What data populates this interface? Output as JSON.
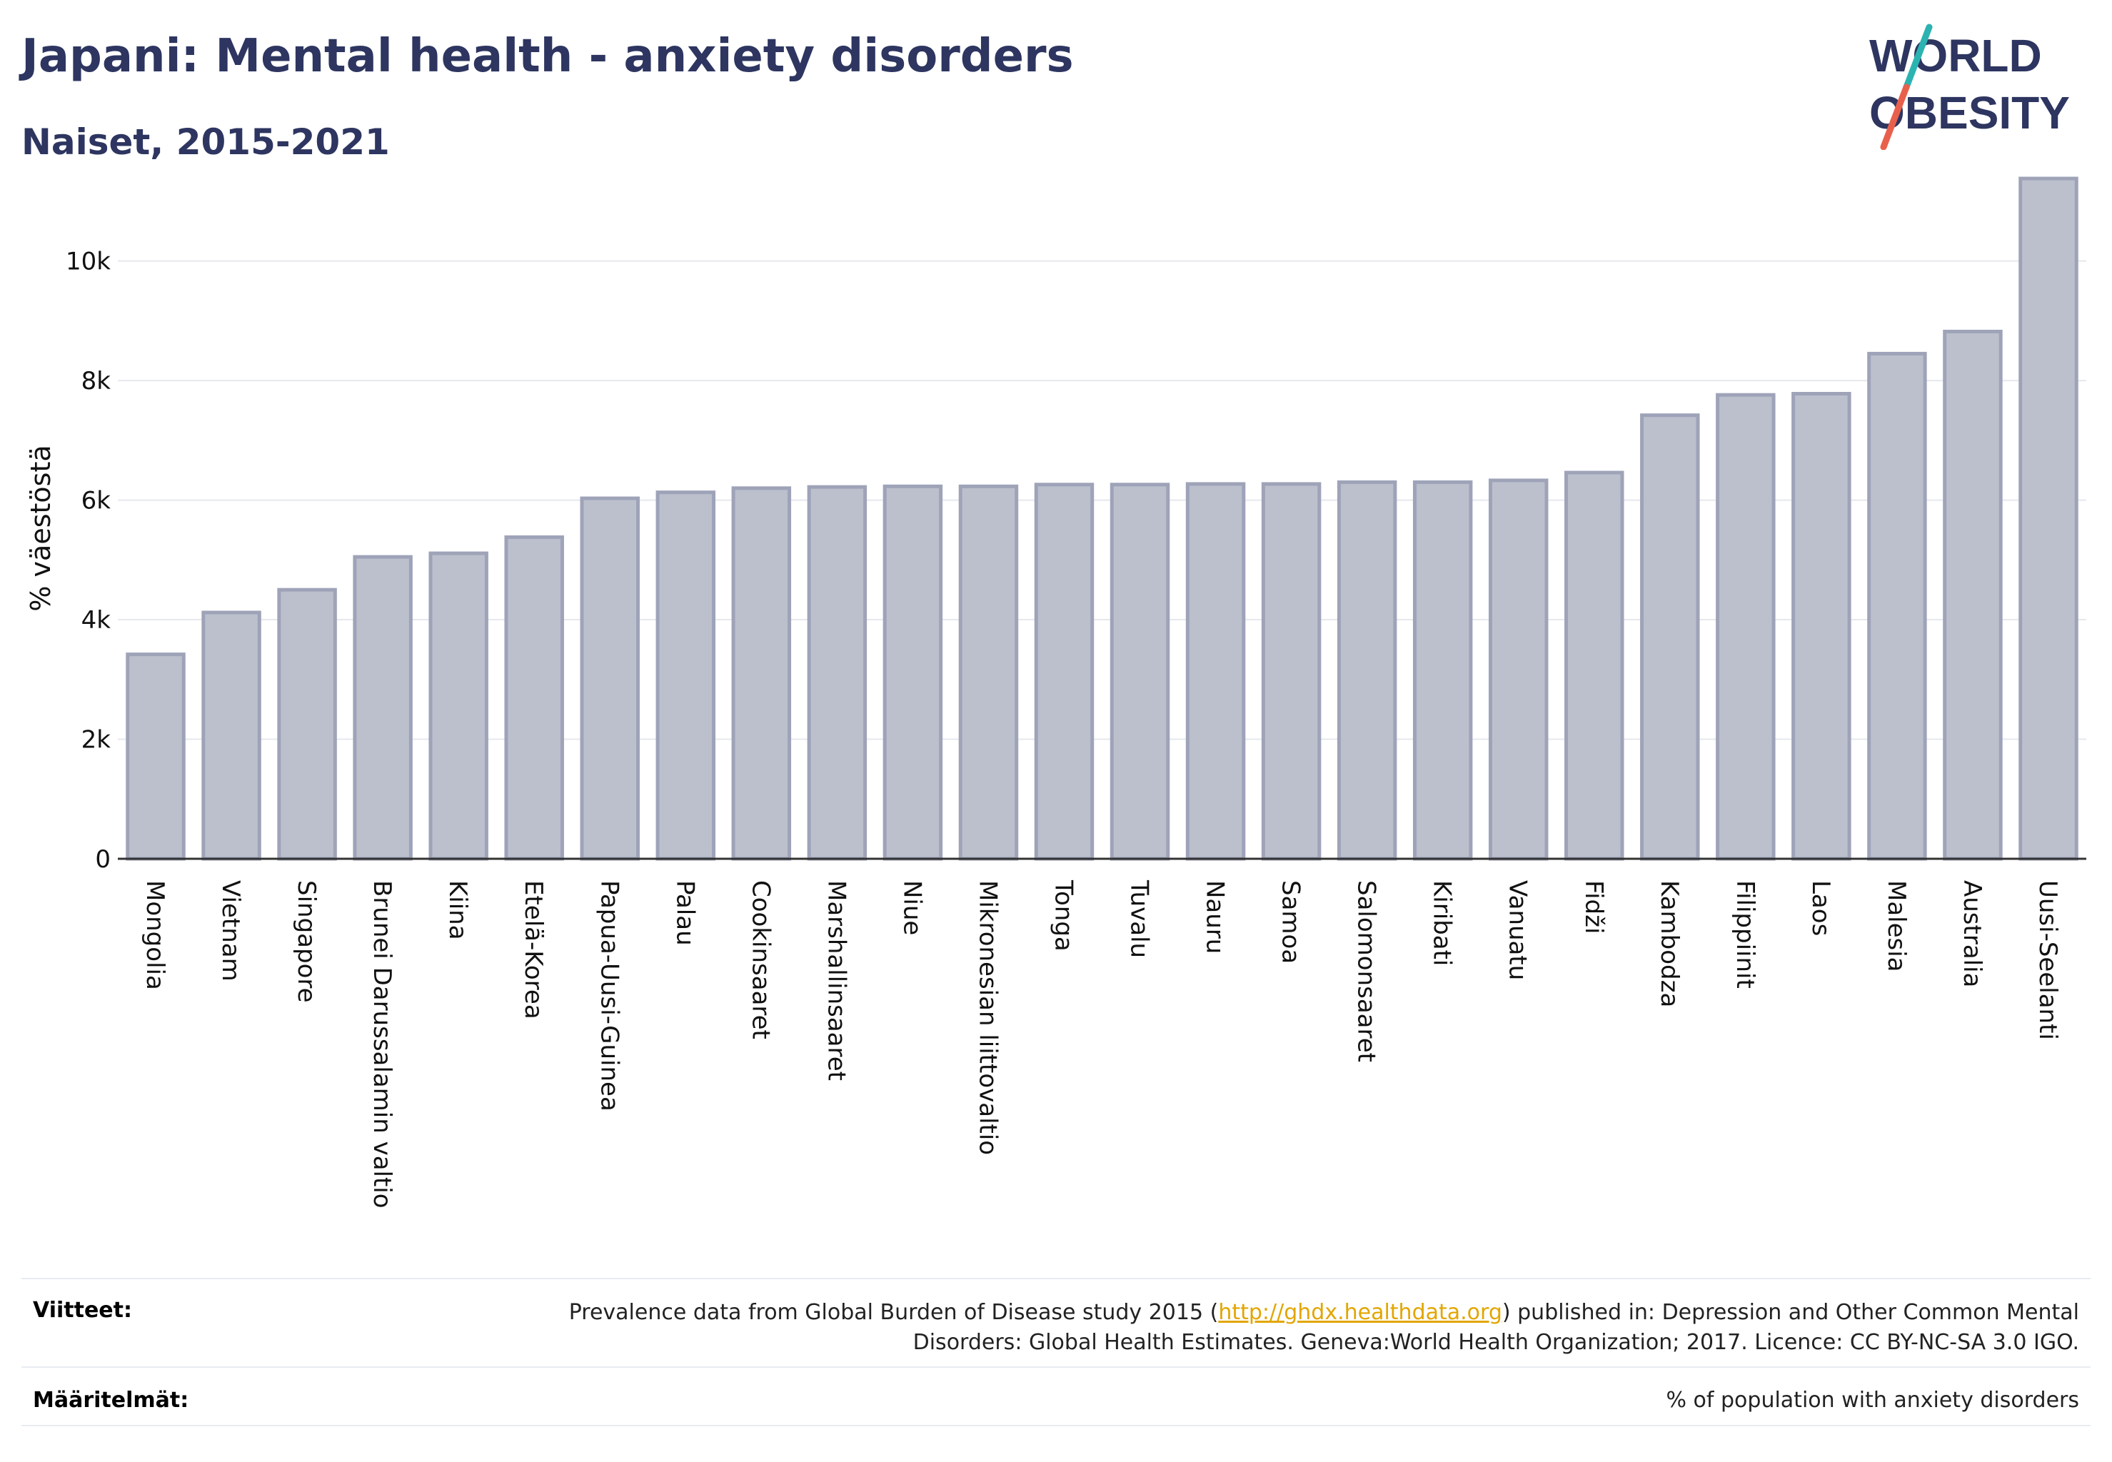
{
  "header": {
    "title": "Japani: Mental health - anxiety disorders",
    "subtitle": "Naiset, 2015-2021"
  },
  "logo": {
    "line1": "WORLD",
    "line2": "OBESITY",
    "accent_colors": [
      "#2bb3b1",
      "#e8604c"
    ],
    "text_color": "#2d3560"
  },
  "chart_data": {
    "type": "bar",
    "title": "",
    "ylabel": "% väestöstä",
    "xlabel": "",
    "ylim": [
      0,
      11500
    ],
    "yticks": [
      0,
      2000,
      4000,
      6000,
      8000,
      10000
    ],
    "ytick_labels": [
      "0",
      "2k",
      "4k",
      "6k",
      "8k",
      "10k"
    ],
    "grid": true,
    "bar_color": "#bcc0cd",
    "bar_edge_color": "#9ea3b8",
    "categories": [
      "Mongolia",
      "Vietnam",
      "Singapore",
      "Brunei Darussalamin valtio",
      "Kiina",
      "Etelä-Korea",
      "Papua-Uusi-Guinea",
      "Palau",
      "Cookinsaaret",
      "Marshallinsaaret",
      "Niue",
      "Mikronesian liittovaltio",
      "Tonga",
      "Tuvalu",
      "Nauru",
      "Samoa",
      "Salomonsaaret",
      "Kiribati",
      "Vanuatu",
      "Fidži",
      "Kambodza",
      "Filippiinit",
      "Laos",
      "Malesia",
      "Australia",
      "Uusi-Seelanti"
    ],
    "values": [
      3420,
      4120,
      4500,
      5050,
      5110,
      5380,
      6030,
      6130,
      6200,
      6220,
      6230,
      6230,
      6260,
      6260,
      6270,
      6270,
      6300,
      6300,
      6330,
      6460,
      7420,
      7760,
      7780,
      8450,
      8820,
      11380
    ]
  },
  "footer": {
    "references_label": "Viitteet:",
    "references_pre": "Prevalence data from Global Burden of Disease study 2015 (",
    "references_link": "http://ghdx.healthdata.org",
    "references_post": ") published in: Depression and Other Common Mental Disorders: Global Health Estimates. Geneva:World Health Organization; 2017. Licence: CC BY-NC-SA 3.0 IGO.",
    "definitions_label": "Määritelmät:",
    "definitions_text": "% of population with anxiety disorders"
  }
}
